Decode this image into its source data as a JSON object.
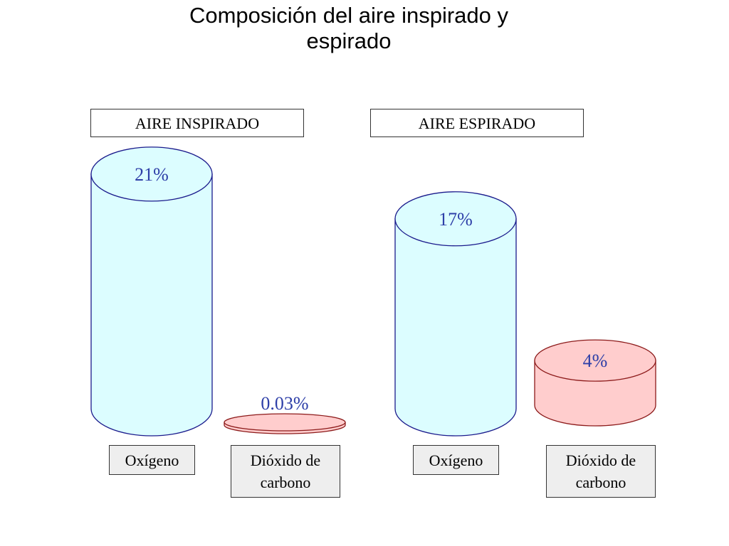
{
  "chart_data": {
    "type": "bar",
    "title_lines": [
      "Composición del aire inspirado y",
      "espirado"
    ],
    "groups": [
      {
        "label": "AIRE INSPIRADO",
        "bars": [
          {
            "category": "Oxígeno",
            "value": 21,
            "value_label": "21%",
            "color": "#dcfdff"
          },
          {
            "category": "Dióxido de carbono",
            "value": 0.03,
            "value_label": "0.03%",
            "color": "#ffcdcd"
          }
        ]
      },
      {
        "label": "AIRE ESPIRADO",
        "bars": [
          {
            "category": "Oxígeno",
            "value": 17,
            "value_label": "17%",
            "color": "#dcfdff"
          },
          {
            "category": "Dióxido de carbono",
            "value": 4,
            "value_label": "4%",
            "color": "#ffcdcd"
          }
        ]
      }
    ],
    "unit": "%"
  },
  "labels": {
    "group_1": "AIRE INSPIRADO",
    "group_2": "AIRE ESPIRADO",
    "cat_1": "Oxígeno",
    "cat_2_line1": "Dióxido de",
    "cat_2_line2": "carbono",
    "cat_3": "Oxígeno",
    "cat_4_line1": "Dióxido de",
    "cat_4_line2": "carbono"
  },
  "colors": {
    "oxygen_fill": "#dcfdff",
    "oxygen_stroke": "#1a1a8c",
    "co2_fill": "#ffcdcd",
    "co2_stroke": "#8c1a1a",
    "value_text": "#2e3fa8"
  }
}
